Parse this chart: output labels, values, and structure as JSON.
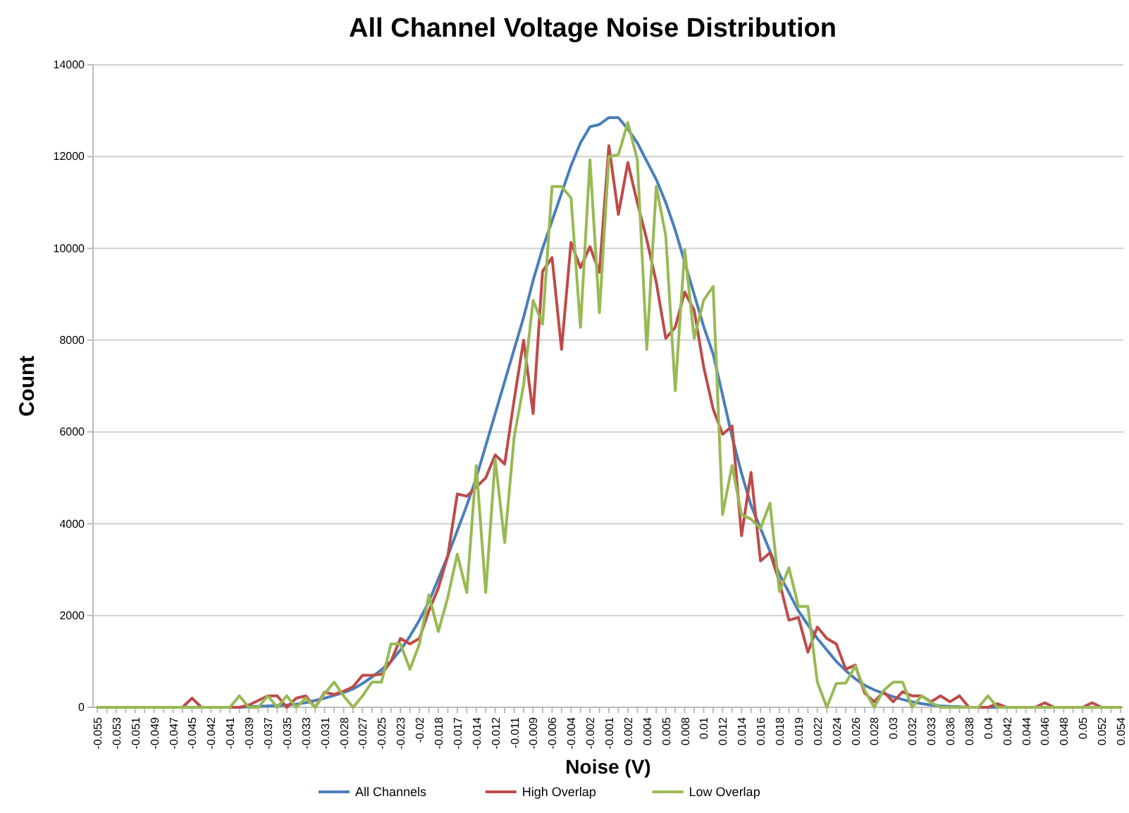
{
  "chart_data": {
    "type": "line",
    "title": "All Channel Voltage Noise Distribution",
    "xlabel": "Noise (V)",
    "ylabel": "Count",
    "categories": [
      "-0.055",
      null,
      "-0.053",
      null,
      "-0.051",
      null,
      "-0.049",
      null,
      "-0.047",
      null,
      "-0.045",
      null,
      "-0.042",
      null,
      "-0.041",
      null,
      "-0.039",
      null,
      "-0.037",
      null,
      "-0.035",
      null,
      "-0.033",
      null,
      "-0.031",
      null,
      "-0.028",
      null,
      "-0.027",
      null,
      "-0.025",
      null,
      "-0.023",
      null,
      "-0.02",
      null,
      "-0.018",
      null,
      "-0.017",
      null,
      "-0.014",
      null,
      "-0.012",
      null,
      "-0.011",
      null,
      "-0.009",
      null,
      "-0.006",
      null,
      "-0.004",
      null,
      "-0.002",
      null,
      "-0.001",
      null,
      "0.002",
      null,
      "0.004",
      null,
      "0.005",
      null,
      "0.008",
      null,
      "0.01",
      null,
      "0.012",
      null,
      "0.014",
      null,
      "0.016",
      null,
      "0.018",
      null,
      "0.019",
      null,
      "0.022",
      null,
      "0.024",
      null,
      "0.026",
      null,
      "0.028",
      null,
      "0.03",
      null,
      "0.032",
      null,
      "0.033",
      null,
      "0.036",
      null,
      "0.038",
      null,
      "0.04",
      null,
      "0.042",
      null,
      "0.044",
      null,
      "0.046",
      null,
      "0.048",
      null,
      "0.05",
      null,
      "0.052",
      null,
      "0.054"
    ],
    "series": [
      {
        "name": "All Channels",
        "color": "#4a7ebb",
        "values": [
          null,
          null,
          null,
          null,
          null,
          null,
          null,
          null,
          null,
          null,
          null,
          null,
          null,
          null,
          0,
          0,
          10,
          20,
          30,
          40,
          50,
          70,
          100,
          150,
          200,
          260,
          320,
          400,
          520,
          660,
          820,
          1000,
          1250,
          1550,
          1900,
          2300,
          2800,
          3300,
          3850,
          4400,
          5000,
          5700,
          6400,
          7100,
          7800,
          8500,
          9300,
          10000,
          10600,
          11200,
          11800,
          12300,
          12650,
          12700,
          12850,
          12850,
          12600,
          12300,
          11900,
          11500,
          11000,
          10400,
          9700,
          9000,
          8300,
          7700,
          6800,
          5900,
          5100,
          4400,
          3900,
          3400,
          2900,
          2500,
          2100,
          1800,
          1500,
          1250,
          1000,
          800,
          620,
          480,
          380,
          300,
          230,
          170,
          120,
          80,
          50,
          30,
          20,
          10,
          0,
          0,
          0,
          0,
          0,
          null,
          null,
          null,
          null,
          null,
          null,
          null,
          null,
          null,
          null,
          null,
          null
        ]
      },
      {
        "name": "High Overlap",
        "color": "#be4b48",
        "values": [
          null,
          null,
          null,
          null,
          null,
          null,
          null,
          null,
          0,
          0,
          200,
          0,
          0,
          0,
          0,
          0,
          50,
          150,
          250,
          250,
          0,
          200,
          250,
          0,
          330,
          280,
          350,
          450,
          700,
          700,
          720,
          1000,
          1500,
          1380,
          1500,
          2100,
          2600,
          3300,
          4650,
          4600,
          4800,
          5000,
          5500,
          5300,
          6700,
          8000,
          6400,
          9500,
          9800,
          7800,
          10130,
          9580,
          10040,
          9480,
          12240,
          10740,
          11870,
          11000,
          10190,
          9260,
          8040,
          8280,
          9050,
          8650,
          7420,
          6500,
          5950,
          6130,
          3740,
          5120,
          3190,
          3370,
          2730,
          1900,
          1960,
          1200,
          1750,
          1500,
          1380,
          830,
          920,
          310,
          120,
          340,
          120,
          340,
          250,
          250,
          120,
          250,
          120,
          250,
          0,
          0,
          0,
          80,
          0,
          0,
          0,
          0,
          100,
          0,
          0,
          0,
          0,
          100,
          0,
          0,
          0
        ]
      },
      {
        "name": "Low Overlap",
        "color": "#98b954",
        "values": [
          0,
          0,
          0,
          0,
          0,
          0,
          0,
          0,
          0,
          0,
          0,
          0,
          0,
          0,
          0,
          250,
          0,
          0,
          250,
          0,
          250,
          0,
          200,
          0,
          300,
          550,
          250,
          0,
          250,
          550,
          550,
          1380,
          1380,
          830,
          1380,
          2450,
          1650,
          2400,
          3340,
          2500,
          5270,
          2500,
          5400,
          3590,
          5890,
          7030,
          8870,
          8350,
          11350,
          11350,
          11100,
          8280,
          11930,
          8600,
          12000,
          12040,
          12740,
          11930,
          7800,
          11350,
          10280,
          6900,
          9970,
          8040,
          8870,
          9170,
          4200,
          5270,
          4200,
          4100,
          3900,
          4450,
          2520,
          3040,
          2200,
          2200,
          550,
          0,
          520,
          530,
          900,
          370,
          0,
          370,
          550,
          550,
          0,
          250,
          100,
          0,
          0,
          0,
          0,
          0,
          250,
          0,
          0,
          0,
          0,
          0,
          0,
          0,
          0,
          0,
          0,
          0,
          0,
          0,
          0
        ]
      }
    ],
    "ylim": [
      0,
      14000
    ],
    "yticks": [
      0,
      2000,
      4000,
      6000,
      8000,
      10000,
      12000,
      14000
    ],
    "grid": "y",
    "legend": "bottom",
    "marker": "none",
    "line_style": "solid"
  }
}
